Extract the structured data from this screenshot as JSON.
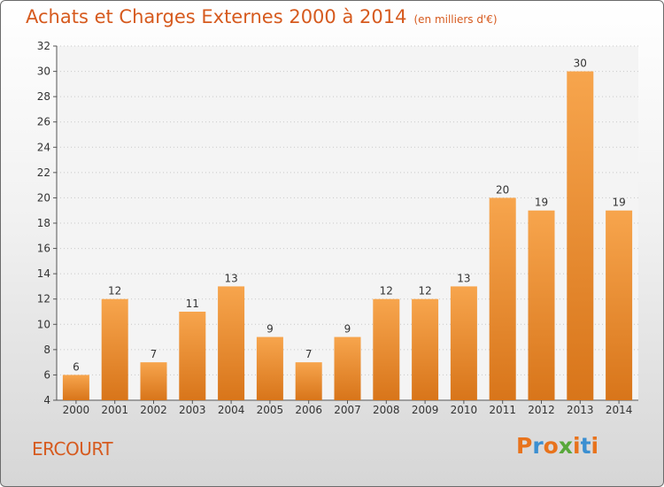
{
  "header": {
    "title": "Achats et Charges Externes 2000 à 2014",
    "subtitle": "(en milliers d'€)"
  },
  "footer": {
    "commune": "ERCOURT",
    "logo": "Proxiti"
  },
  "colors": {
    "accent": "#d65a1e",
    "bar_light": "#f7a54d",
    "bar_dark": "#d8751a",
    "logo_letters": [
      "#e8731c",
      "#3b8fd1",
      "#e8731c",
      "#58a83a",
      "#e8731c",
      "#3b8fd1",
      "#e8731c"
    ]
  },
  "chart_data": {
    "type": "bar",
    "categories": [
      "2000",
      "2001",
      "2002",
      "2003",
      "2004",
      "2005",
      "2006",
      "2007",
      "2008",
      "2009",
      "2010",
      "2011",
      "2012",
      "2013",
      "2014"
    ],
    "values": [
      6,
      12,
      7,
      11,
      13,
      9,
      7,
      9,
      12,
      12,
      13,
      20,
      19,
      30,
      19
    ],
    "ylim": [
      4,
      32
    ],
    "yticks": [
      4,
      6,
      8,
      10,
      12,
      14,
      16,
      18,
      20,
      22,
      24,
      26,
      28,
      30,
      32
    ],
    "grid": true,
    "data_labels": true
  }
}
